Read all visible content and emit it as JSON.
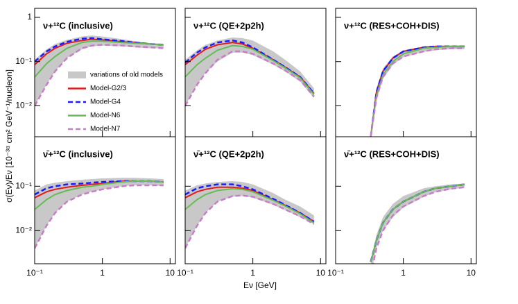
{
  "shared": {
    "xlabel": "Eν [GeV]",
    "ylabel": "σ(Eν)/Eν [10⁻³⁸ cm² GeV⁻¹/nucleon]"
  },
  "chart_data": [
    {
      "type": "line",
      "title": "ν+¹²C (inclusive)",
      "xscale": "log",
      "yscale": "log",
      "legend": "center-left",
      "x": [
        0.1,
        0.15,
        0.2,
        0.3,
        0.5,
        0.7,
        1,
        2,
        3,
        5,
        8
      ],
      "xlim": [
        0.1,
        12
      ],
      "ylim": [
        0.002,
        1.6
      ],
      "xticks": [
        0.1,
        1,
        10
      ],
      "yticks": [
        {
          "value": 0.01,
          "label": "10⁻²"
        },
        {
          "value": 0.1,
          "label": "10⁻¹"
        },
        {
          "value": 1,
          "label": "1"
        }
      ],
      "series": [
        {
          "name": "variations of old models",
          "color": "#c8c8c8",
          "style": "band",
          "values": [
            0.11,
            0.19,
            0.25,
            0.31,
            0.37,
            0.39,
            0.37,
            0.32,
            0.29,
            0.26,
            0.25
          ],
          "lower": [
            0.01,
            0.03,
            0.06,
            0.12,
            0.19,
            0.22,
            0.23,
            0.22,
            0.21,
            0.2,
            0.2
          ]
        },
        {
          "name": "Model-G2/3",
          "color": "#e31a1c",
          "values": [
            0.085,
            0.15,
            0.2,
            0.26,
            0.3,
            0.32,
            0.31,
            0.28,
            0.27,
            0.25,
            0.24
          ]
        },
        {
          "name": "Model-G4",
          "color": "#1a1aff",
          "dashed": true,
          "values": [
            0.1,
            0.17,
            0.22,
            0.28,
            0.33,
            0.34,
            0.32,
            0.29,
            0.27,
            0.25,
            0.24
          ]
        },
        {
          "name": "Model-N6",
          "color": "#66bb55",
          "values": [
            0.045,
            0.09,
            0.13,
            0.2,
            0.27,
            0.29,
            0.29,
            0.27,
            0.26,
            0.25,
            0.24
          ]
        },
        {
          "name": "Model-N7",
          "color": "#c77dc7",
          "dashed": true,
          "values": [
            0.01,
            0.03,
            0.06,
            0.12,
            0.2,
            0.23,
            0.24,
            0.23,
            0.22,
            0.21,
            0.2
          ]
        }
      ]
    },
    {
      "type": "line",
      "title": "ν+¹²C (QE+2p2h)",
      "xscale": "log",
      "yscale": "log",
      "x": [
        0.1,
        0.15,
        0.2,
        0.3,
        0.5,
        0.7,
        1,
        2,
        3,
        5,
        8
      ],
      "xlim": [
        0.1,
        12
      ],
      "ylim": [
        0.002,
        1.6
      ],
      "xticks": [
        0.1,
        1,
        10
      ],
      "yticks": [
        0.01,
        0.1,
        1
      ],
      "series": [
        {
          "color": "#c8c8c8",
          "style": "band",
          "values": [
            0.11,
            0.18,
            0.24,
            0.3,
            0.35,
            0.34,
            0.3,
            0.17,
            0.11,
            0.06,
            0.025
          ],
          "lower": [
            0.01,
            0.03,
            0.055,
            0.1,
            0.16,
            0.16,
            0.14,
            0.085,
            0.06,
            0.035,
            0.015
          ]
        },
        {
          "color": "#e31a1c",
          "values": [
            0.085,
            0.14,
            0.19,
            0.24,
            0.27,
            0.25,
            0.2,
            0.11,
            0.075,
            0.045,
            0.019
          ]
        },
        {
          "color": "#1a1aff",
          "dashed": true,
          "values": [
            0.095,
            0.16,
            0.21,
            0.27,
            0.3,
            0.27,
            0.21,
            0.11,
            0.075,
            0.045,
            0.019
          ]
        },
        {
          "color": "#66bb55",
          "values": [
            0.045,
            0.085,
            0.12,
            0.18,
            0.23,
            0.22,
            0.19,
            0.105,
            0.072,
            0.043,
            0.018
          ]
        },
        {
          "color": "#c77dc7",
          "dashed": true,
          "values": [
            0.01,
            0.03,
            0.055,
            0.11,
            0.17,
            0.17,
            0.15,
            0.09,
            0.063,
            0.038,
            0.016
          ]
        }
      ]
    },
    {
      "type": "line",
      "title": "ν+¹²C (RES+COH+DIS)",
      "xscale": "log",
      "yscale": "log",
      "x": [
        0.33,
        0.4,
        0.5,
        0.7,
        1,
        2,
        3,
        5,
        8
      ],
      "xlim": [
        0.1,
        12
      ],
      "ylim": [
        0.002,
        1.6
      ],
      "xticks": [
        0.1,
        1,
        10
      ],
      "yticks": [
        0.01,
        0.1,
        1
      ],
      "series": [
        {
          "color": "#c8c8c8",
          "style": "band",
          "values": [
            0.002,
            0.025,
            0.07,
            0.13,
            0.18,
            0.22,
            0.23,
            0.23,
            0.23
          ],
          "lower": [
            0.002,
            0.013,
            0.04,
            0.085,
            0.125,
            0.165,
            0.18,
            0.19,
            0.19
          ]
        },
        {
          "color": "#e31a1c",
          "values": [
            0.002,
            0.02,
            0.06,
            0.12,
            0.17,
            0.21,
            0.22,
            0.22,
            0.22
          ]
        },
        {
          "color": "#1a1aff",
          "dashed": true,
          "values": [
            0.002,
            0.02,
            0.06,
            0.12,
            0.17,
            0.21,
            0.22,
            0.22,
            0.22
          ]
        },
        {
          "color": "#66bb55",
          "values": [
            0.002,
            0.017,
            0.05,
            0.1,
            0.15,
            0.2,
            0.21,
            0.22,
            0.22
          ]
        },
        {
          "color": "#c77dc7",
          "dashed": true,
          "values": [
            0.002,
            0.015,
            0.045,
            0.09,
            0.13,
            0.17,
            0.19,
            0.2,
            0.2
          ]
        }
      ]
    },
    {
      "type": "line",
      "title": "ν̄+¹²C (inclusive)",
      "xscale": "log",
      "yscale": "log",
      "x": [
        0.1,
        0.15,
        0.2,
        0.3,
        0.5,
        0.7,
        1,
        2,
        3,
        5,
        8
      ],
      "xlim": [
        0.1,
        12
      ],
      "ylim": [
        0.0018,
        1.3
      ],
      "xticks": [
        {
          "value": 0.1,
          "label": "10⁻¹"
        },
        {
          "value": 1,
          "label": "1"
        },
        {
          "value": 10,
          "label": "10"
        }
      ],
      "yticks": [
        {
          "value": 0.01,
          "label": "10⁻²"
        },
        {
          "value": 0.1,
          "label": "10⁻¹"
        }
      ],
      "series": [
        {
          "color": "#c8c8c8",
          "style": "band",
          "values": [
            0.08,
            0.11,
            0.12,
            0.13,
            0.14,
            0.145,
            0.15,
            0.155,
            0.155,
            0.15,
            0.145
          ],
          "lower": [
            0.004,
            0.013,
            0.025,
            0.045,
            0.065,
            0.075,
            0.085,
            0.1,
            0.105,
            0.105,
            0.1
          ]
        },
        {
          "color": "#e31a1c",
          "values": [
            0.055,
            0.075,
            0.085,
            0.095,
            0.105,
            0.11,
            0.115,
            0.13,
            0.13,
            0.13,
            0.125
          ]
        },
        {
          "color": "#1a1aff",
          "dashed": true,
          "values": [
            0.065,
            0.09,
            0.1,
            0.11,
            0.115,
            0.12,
            0.125,
            0.13,
            0.13,
            0.13,
            0.125
          ]
        },
        {
          "color": "#66bb55",
          "values": [
            0.03,
            0.05,
            0.065,
            0.08,
            0.095,
            0.1,
            0.11,
            0.125,
            0.13,
            0.13,
            0.125
          ]
        },
        {
          "color": "#c77dc7",
          "dashed": true,
          "values": [
            0.004,
            0.013,
            0.025,
            0.045,
            0.065,
            0.075,
            0.085,
            0.1,
            0.105,
            0.105,
            0.105
          ]
        }
      ]
    },
    {
      "type": "line",
      "title": "ν̄+¹²C (QE+2p2h)",
      "xscale": "log",
      "yscale": "log",
      "x": [
        0.1,
        0.15,
        0.2,
        0.3,
        0.5,
        0.7,
        1,
        2,
        3,
        5,
        8
      ],
      "xlim": [
        0.1,
        12
      ],
      "ylim": [
        0.0018,
        1.3
      ],
      "xticks": [
        {
          "value": 0.1,
          "label": "10⁻¹"
        },
        {
          "value": 1,
          "label": "1"
        },
        {
          "value": 10,
          "label": "10"
        }
      ],
      "yticks": [
        0.01,
        0.1
      ],
      "series": [
        {
          "color": "#c8c8c8",
          "style": "band",
          "values": [
            0.08,
            0.105,
            0.115,
            0.125,
            0.13,
            0.125,
            0.11,
            0.07,
            0.05,
            0.035,
            0.022
          ],
          "lower": [
            0.004,
            0.013,
            0.025,
            0.045,
            0.058,
            0.06,
            0.055,
            0.038,
            0.029,
            0.02,
            0.014
          ]
        },
        {
          "color": "#e31a1c",
          "values": [
            0.055,
            0.075,
            0.085,
            0.095,
            0.095,
            0.09,
            0.08,
            0.05,
            0.037,
            0.025,
            0.016
          ]
        },
        {
          "color": "#1a1aff",
          "dashed": true,
          "values": [
            0.065,
            0.09,
            0.1,
            0.11,
            0.11,
            0.1,
            0.085,
            0.052,
            0.038,
            0.025,
            0.016
          ]
        },
        {
          "color": "#66bb55",
          "values": [
            0.03,
            0.05,
            0.065,
            0.08,
            0.088,
            0.085,
            0.075,
            0.048,
            0.036,
            0.024,
            0.015
          ]
        },
        {
          "color": "#c77dc7",
          "dashed": true,
          "values": [
            0.004,
            0.013,
            0.025,
            0.045,
            0.06,
            0.062,
            0.058,
            0.04,
            0.03,
            0.021,
            0.014
          ]
        }
      ]
    },
    {
      "type": "line",
      "title": "ν̄+¹²C (RES+COH+DIS)",
      "xscale": "log",
      "yscale": "log",
      "x": [
        0.33,
        0.4,
        0.5,
        0.7,
        1,
        2,
        3,
        5,
        8
      ],
      "xlim": [
        0.1,
        12
      ],
      "ylim": [
        0.0018,
        1.3
      ],
      "xticks": [
        {
          "value": 0.1,
          "label": "10⁻¹"
        },
        {
          "value": 1,
          "label": "1"
        },
        {
          "value": 10,
          "label": "10"
        }
      ],
      "yticks": [
        0.01,
        0.1
      ],
      "series": [
        {
          "color": "#c8c8c8",
          "style": "band",
          "values": [
            0.002,
            0.008,
            0.02,
            0.04,
            0.06,
            0.09,
            0.1,
            0.11,
            0.115
          ],
          "lower": [
            0.001,
            0.004,
            0.01,
            0.02,
            0.033,
            0.058,
            0.073,
            0.085,
            0.093
          ]
        },
        {
          "color": "#e31a1c",
          "values": [
            0.002,
            0.006,
            0.015,
            0.03,
            0.045,
            0.075,
            0.09,
            0.1,
            0.11
          ]
        },
        {
          "color": "#1a1aff",
          "dashed": true,
          "values": [
            0.002,
            0.006,
            0.015,
            0.03,
            0.045,
            0.075,
            0.09,
            0.1,
            0.11
          ]
        },
        {
          "color": "#66bb55",
          "values": [
            0.002,
            0.006,
            0.015,
            0.03,
            0.045,
            0.075,
            0.09,
            0.1,
            0.11
          ]
        },
        {
          "color": "#c77dc7",
          "dashed": true,
          "values": [
            0.001,
            0.004,
            0.01,
            0.022,
            0.035,
            0.06,
            0.075,
            0.088,
            0.095
          ]
        }
      ]
    }
  ]
}
